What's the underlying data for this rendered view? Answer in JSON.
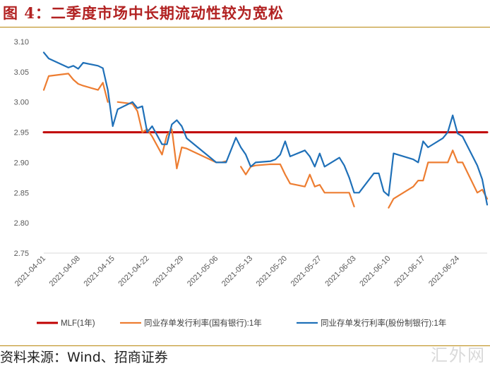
{
  "header": {
    "title": "图 4：二季度市场中长期流动性较为宽松"
  },
  "footer": {
    "source": "资料来源：Wind、招商证券",
    "watermark": "汇外网"
  },
  "chart_data": {
    "type": "line",
    "x": [
      "2021-04-01",
      "2021-04-02",
      "2021-04-06",
      "2021-04-07",
      "2021-04-08",
      "2021-04-09",
      "2021-04-12",
      "2021-04-13",
      "2021-04-14",
      "2021-04-15",
      "2021-04-16",
      "2021-04-19",
      "2021-04-20",
      "2021-04-21",
      "2021-04-22",
      "2021-04-23",
      "2021-04-25",
      "2021-04-26",
      "2021-04-27",
      "2021-04-28",
      "2021-04-29",
      "2021-04-30",
      "2021-05-06",
      "2021-05-07",
      "2021-05-08",
      "2021-05-10",
      "2021-05-11",
      "2021-05-12",
      "2021-05-13",
      "2021-05-14",
      "2021-05-17",
      "2021-05-18",
      "2021-05-19",
      "2021-05-20",
      "2021-05-21",
      "2021-05-24",
      "2021-05-25",
      "2021-05-26",
      "2021-05-27",
      "2021-05-28",
      "2021-05-31",
      "2021-06-01",
      "2021-06-02",
      "2021-06-03",
      "2021-06-04",
      "2021-06-07",
      "2021-06-08",
      "2021-06-09",
      "2021-06-10",
      "2021-06-11",
      "2021-06-15",
      "2021-06-16",
      "2021-06-17",
      "2021-06-18",
      "2021-06-21",
      "2021-06-22",
      "2021-06-23",
      "2021-06-24",
      "2021-06-25",
      "2021-06-28",
      "2021-06-29",
      "2021-06-30"
    ],
    "x_ticks": [
      "2021-04-01",
      "2021-04-08",
      "2021-04-15",
      "2021-04-22",
      "2021-04-29",
      "2021-05-06",
      "2021-05-13",
      "2021-05-20",
      "2021-05-27",
      "2021-06-03",
      "2021-06-10",
      "2021-06-17",
      "2021-06-24"
    ],
    "ylim": [
      2.75,
      3.1
    ],
    "y_ticks": [
      "2.75",
      "2.80",
      "2.85",
      "2.90",
      "2.95",
      "3.00",
      "3.05",
      "3.10"
    ],
    "grid": false,
    "legend_position": "bottom",
    "series": [
      {
        "name": "MLF(1年)",
        "color": "#c00000",
        "values": [
          2.95,
          2.95,
          2.95,
          2.95,
          2.95,
          2.95,
          2.95,
          2.95,
          2.95,
          2.95,
          2.95,
          2.95,
          2.95,
          2.95,
          2.95,
          2.95,
          2.95,
          2.95,
          2.95,
          2.95,
          2.95,
          2.95,
          2.95,
          2.95,
          2.95,
          2.95,
          2.95,
          2.95,
          2.95,
          2.95,
          2.95,
          2.95,
          2.95,
          2.95,
          2.95,
          2.95,
          2.95,
          2.95,
          2.95,
          2.95,
          2.95,
          2.95,
          2.95,
          2.95,
          2.95,
          2.95,
          2.95,
          2.95,
          2.95,
          2.95,
          2.95,
          2.95,
          2.95,
          2.95,
          2.95,
          2.95,
          2.95,
          2.95,
          2.95,
          2.95,
          2.95,
          2.95
        ]
      },
      {
        "name": "同业存单发行利率(国有银行):1年",
        "color": "#ed7d31",
        "values": [
          3.02,
          3.043,
          3.047,
          3.037,
          3.03,
          3.027,
          3.02,
          3.032,
          3.0,
          null,
          3.0,
          2.997,
          2.985,
          2.95,
          2.955,
          2.943,
          2.913,
          2.945,
          2.955,
          2.89,
          2.925,
          2.923,
          2.9,
          2.9,
          2.902,
          null,
          2.893,
          2.88,
          2.893,
          2.895,
          2.897,
          2.897,
          2.897,
          2.88,
          2.865,
          2.86,
          2.88,
          2.86,
          2.863,
          2.85,
          2.85,
          2.85,
          2.85,
          2.827,
          null,
          null,
          null,
          null,
          2.825,
          2.84,
          2.86,
          2.87,
          2.87,
          2.9,
          2.9,
          2.9,
          2.92,
          2.9,
          2.9,
          2.85,
          2.855,
          2.84
        ]
      },
      {
        "name": "同业存单发行利率(股份制银行):1年",
        "color": "#1f70b8",
        "values": [
          3.082,
          3.072,
          3.057,
          3.06,
          3.055,
          3.065,
          3.06,
          3.056,
          3.02,
          2.96,
          2.988,
          3.0,
          2.99,
          2.993,
          2.95,
          2.96,
          2.93,
          2.93,
          2.963,
          2.97,
          2.96,
          2.94,
          2.9,
          2.9,
          2.9,
          2.941,
          2.925,
          2.913,
          2.893,
          2.9,
          2.902,
          2.905,
          2.913,
          2.935,
          2.91,
          2.92,
          2.91,
          2.893,
          2.915,
          2.893,
          2.908,
          2.895,
          2.875,
          2.85,
          2.85,
          2.882,
          2.882,
          2.852,
          2.845,
          2.915,
          2.905,
          2.9,
          2.935,
          2.925,
          2.94,
          2.95,
          2.978,
          2.948,
          2.943,
          2.895,
          2.872,
          2.83
        ]
      }
    ]
  }
}
